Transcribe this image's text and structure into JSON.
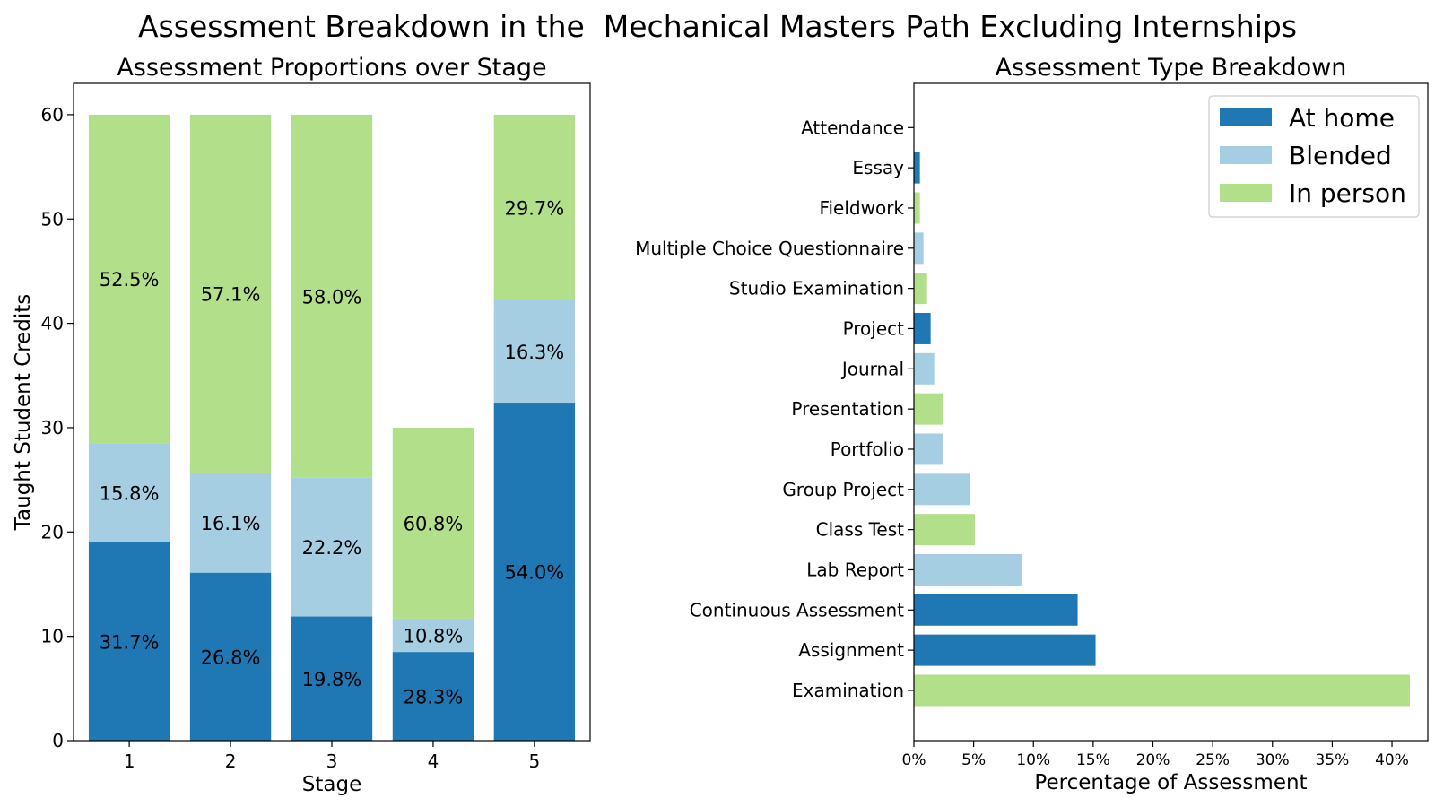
{
  "figure_title": "Assessment Breakdown in the  Mechanical Masters Path Excluding Internships",
  "colors": {
    "at_home": "#1f78b4",
    "blended": "#a6cee3",
    "in_person": "#b2df8a"
  },
  "chart_data": [
    {
      "type": "bar",
      "stacked": true,
      "title": "Assessment Proportions over Stage",
      "xlabel": "Stage",
      "ylabel": "Taught Student Credits",
      "categories": [
        "1",
        "2",
        "3",
        "4",
        "5"
      ],
      "ylim": [
        0,
        63
      ],
      "yticks": [
        0,
        10,
        20,
        30,
        40,
        50,
        60
      ],
      "series": [
        {
          "key": "at_home",
          "values": [
            19.0,
            16.1,
            11.9,
            8.5,
            32.4
          ],
          "labels": [
            "31.7%",
            "26.8%",
            "19.8%",
            "28.3%",
            "54.0%"
          ]
        },
        {
          "key": "blended",
          "values": [
            9.5,
            9.6,
            13.3,
            3.2,
            9.8
          ],
          "labels": [
            "15.8%",
            "16.1%",
            "22.2%",
            "10.8%",
            "16.3%"
          ]
        },
        {
          "key": "in_person",
          "values": [
            31.5,
            34.3,
            34.8,
            18.3,
            17.8
          ],
          "labels": [
            "52.5%",
            "57.1%",
            "58.0%",
            "60.8%",
            "29.7%"
          ]
        }
      ]
    },
    {
      "type": "bar",
      "orientation": "horizontal",
      "title": "Assessment Type Breakdown",
      "xlabel": "Percentage of Assessment",
      "ylabel": "",
      "xlim": [
        0,
        43
      ],
      "xticks": [
        0,
        5,
        10,
        15,
        20,
        25,
        30,
        35,
        40
      ],
      "xtick_labels": [
        "0%",
        "5%",
        "10%",
        "15%",
        "20%",
        "25%",
        "30%",
        "35%",
        "40%"
      ],
      "legend": {
        "position": "top-right",
        "entries": [
          {
            "key": "at_home",
            "label": "At home"
          },
          {
            "key": "blended",
            "label": "Blended"
          },
          {
            "key": "in_person",
            "label": "In person"
          }
        ]
      },
      "categories": [
        "Attendance",
        "Essay",
        "Fieldwork",
        "Multiple Choice Questionnaire",
        "Studio Examination",
        "Project",
        "Journal",
        "Presentation",
        "Portfolio",
        "Group Project",
        "Class Test",
        "Lab Report",
        "Continuous Assessment",
        "Assignment",
        "Examination"
      ],
      "values": [
        0.0,
        0.5,
        0.5,
        0.8,
        1.1,
        1.4,
        1.7,
        2.4,
        2.4,
        4.7,
        5.1,
        9.0,
        13.7,
        15.2,
        41.5
      ],
      "types": [
        "in_person",
        "at_home",
        "in_person",
        "blended",
        "in_person",
        "at_home",
        "blended",
        "in_person",
        "blended",
        "blended",
        "in_person",
        "blended",
        "at_home",
        "at_home",
        "in_person"
      ]
    }
  ]
}
